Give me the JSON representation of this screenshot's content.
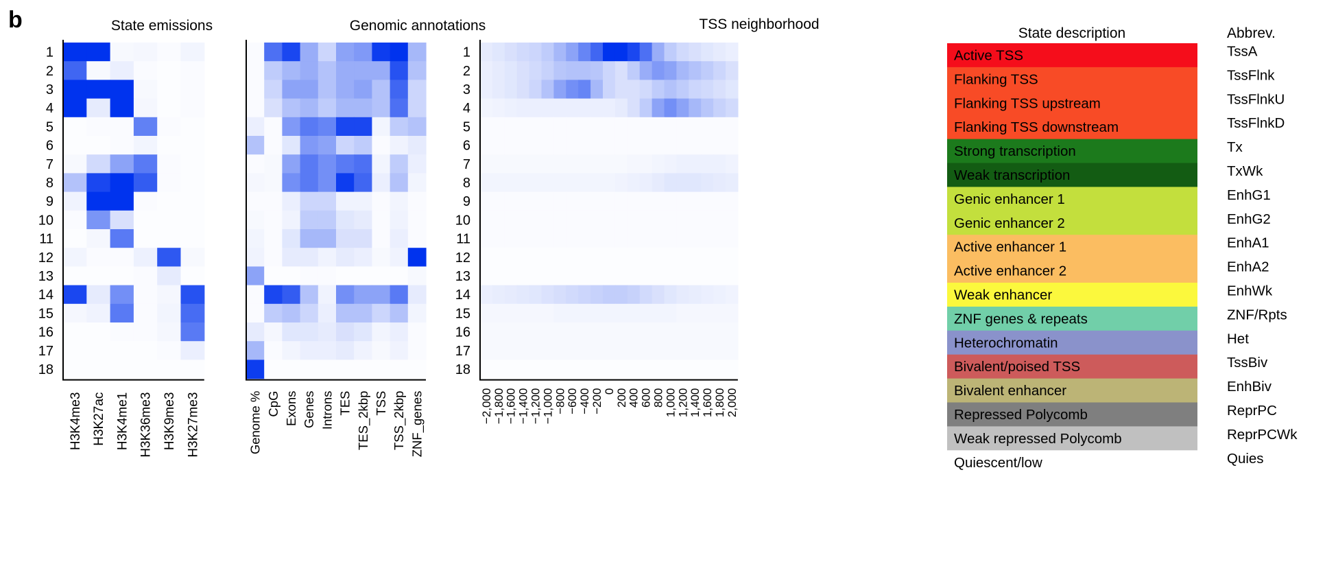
{
  "panel_label": "b",
  "chart_data": [
    {
      "type": "heatmap",
      "title": "State emissions",
      "rows": [
        "1",
        "2",
        "3",
        "4",
        "5",
        "6",
        "7",
        "8",
        "9",
        "10",
        "11",
        "12",
        "13",
        "14",
        "15",
        "16",
        "17",
        "18"
      ],
      "columns": [
        "H3K4me3",
        "H3K27ac",
        "H3K4me1",
        "H3K36me3",
        "H3K9me3",
        "H3K27me3"
      ],
      "value_range": [
        0,
        1
      ],
      "color_low": "#ffffff",
      "color_high": "#0033ee",
      "values": [
        [
          1.0,
          1.0,
          0.03,
          0.04,
          0.02,
          0.05
        ],
        [
          0.75,
          0.03,
          0.08,
          0.02,
          0.01,
          0.02
        ],
        [
          1.0,
          1.0,
          1.0,
          0.03,
          0.01,
          0.02
        ],
        [
          1.0,
          0.1,
          1.0,
          0.04,
          0.01,
          0.02
        ],
        [
          0.01,
          0.02,
          0.02,
          0.62,
          0.02,
          0.01
        ],
        [
          0.01,
          0.01,
          0.02,
          0.05,
          0.01,
          0.01
        ],
        [
          0.03,
          0.18,
          0.45,
          0.65,
          0.02,
          0.01
        ],
        [
          0.3,
          0.9,
          1.0,
          0.8,
          0.02,
          0.01
        ],
        [
          0.06,
          1.0,
          1.0,
          0.02,
          0.01,
          0.01
        ],
        [
          0.02,
          0.52,
          0.15,
          0.01,
          0.01,
          0.01
        ],
        [
          0.01,
          0.04,
          0.65,
          0.01,
          0.01,
          0.01
        ],
        [
          0.05,
          0.02,
          0.02,
          0.07,
          0.82,
          0.03
        ],
        [
          0.01,
          0.01,
          0.01,
          0.02,
          0.1,
          0.01
        ],
        [
          0.9,
          0.1,
          0.55,
          0.02,
          0.04,
          0.85
        ],
        [
          0.04,
          0.06,
          0.65,
          0.02,
          0.05,
          0.72
        ],
        [
          0.01,
          0.01,
          0.02,
          0.02,
          0.04,
          0.65
        ],
        [
          0.01,
          0.01,
          0.01,
          0.01,
          0.02,
          0.08
        ],
        [
          0.01,
          0.01,
          0.01,
          0.01,
          0.01,
          0.01
        ]
      ]
    },
    {
      "type": "heatmap",
      "title": "Genomic annotations",
      "rows": [
        "1",
        "2",
        "3",
        "4",
        "5",
        "6",
        "7",
        "8",
        "9",
        "10",
        "11",
        "12",
        "13",
        "14",
        "15",
        "16",
        "17",
        "18"
      ],
      "columns": [
        "Genome %",
        "CpG",
        "Exons",
        "Genes",
        "Introns",
        "TES",
        "TES_2kbp",
        "TSS",
        "TSS_2kbp",
        "ZNF_genes"
      ],
      "value_range": [
        0,
        1
      ],
      "color_low": "#ffffff",
      "color_high": "#0033ee",
      "values": [
        [
          0.02,
          0.7,
          0.9,
          0.4,
          0.2,
          0.45,
          0.5,
          0.95,
          1.0,
          0.35
        ],
        [
          0.02,
          0.25,
          0.35,
          0.4,
          0.3,
          0.4,
          0.4,
          0.4,
          0.85,
          0.3
        ],
        [
          0.02,
          0.2,
          0.45,
          0.45,
          0.3,
          0.4,
          0.45,
          0.3,
          0.75,
          0.2
        ],
        [
          0.02,
          0.15,
          0.3,
          0.35,
          0.25,
          0.35,
          0.35,
          0.3,
          0.7,
          0.2
        ],
        [
          0.08,
          0.02,
          0.5,
          0.65,
          0.6,
          0.9,
          0.9,
          0.05,
          0.25,
          0.3
        ],
        [
          0.3,
          0.02,
          0.12,
          0.5,
          0.45,
          0.2,
          0.25,
          0.02,
          0.06,
          0.1
        ],
        [
          0.02,
          0.03,
          0.45,
          0.65,
          0.55,
          0.65,
          0.7,
          0.05,
          0.25,
          0.08
        ],
        [
          0.04,
          0.03,
          0.55,
          0.65,
          0.55,
          0.95,
          0.75,
          0.08,
          0.3,
          0.05
        ],
        [
          0.02,
          0.02,
          0.08,
          0.2,
          0.2,
          0.06,
          0.06,
          0.02,
          0.05,
          0.02
        ],
        [
          0.03,
          0.02,
          0.06,
          0.25,
          0.25,
          0.12,
          0.1,
          0.02,
          0.06,
          0.02
        ],
        [
          0.05,
          0.02,
          0.12,
          0.35,
          0.35,
          0.15,
          0.15,
          0.02,
          0.08,
          0.02
        ],
        [
          0.06,
          0.02,
          0.1,
          0.1,
          0.06,
          0.1,
          0.08,
          0.03,
          0.06,
          1.0
        ],
        [
          0.45,
          0.01,
          0.01,
          0.02,
          0.02,
          0.01,
          0.01,
          0.01,
          0.01,
          0.03
        ],
        [
          0.02,
          0.9,
          0.8,
          0.3,
          0.06,
          0.55,
          0.45,
          0.45,
          0.65,
          0.1
        ],
        [
          0.02,
          0.25,
          0.3,
          0.2,
          0.08,
          0.3,
          0.3,
          0.2,
          0.3,
          0.05
        ],
        [
          0.1,
          0.04,
          0.12,
          0.12,
          0.1,
          0.15,
          0.12,
          0.05,
          0.08,
          0.02
        ],
        [
          0.35,
          0.02,
          0.05,
          0.08,
          0.08,
          0.1,
          0.06,
          0.03,
          0.06,
          0.02
        ],
        [
          0.95,
          0.01,
          0.01,
          0.01,
          0.01,
          0.01,
          0.01,
          0.01,
          0.01,
          0.01
        ]
      ]
    },
    {
      "type": "heatmap",
      "title": "TSS neighborhood",
      "rows": [
        "1",
        "2",
        "3",
        "4",
        "5",
        "6",
        "7",
        "8",
        "9",
        "10",
        "11",
        "12",
        "13",
        "14",
        "15",
        "16",
        "17",
        "18"
      ],
      "columns": [
        "−2,000",
        "−1,800",
        "−1,600",
        "−1,400",
        "−1,200",
        "−1,000",
        "−800",
        "−600",
        "−400",
        "−200",
        "0",
        "200",
        "400",
        "600",
        "800",
        "1,000",
        "1,200",
        "1,400",
        "1,600",
        "1,800",
        "2,000"
      ],
      "value_range": [
        0,
        1
      ],
      "color_low": "#ffffff",
      "color_high": "#0033ee",
      "values": [
        [
          0.1,
          0.12,
          0.15,
          0.18,
          0.2,
          0.25,
          0.35,
          0.45,
          0.6,
          0.75,
          1.0,
          1.0,
          0.9,
          0.7,
          0.4,
          0.25,
          0.18,
          0.15,
          0.12,
          0.1,
          0.08
        ],
        [
          0.08,
          0.1,
          0.12,
          0.15,
          0.18,
          0.22,
          0.28,
          0.3,
          0.3,
          0.28,
          0.2,
          0.15,
          0.25,
          0.4,
          0.5,
          0.45,
          0.35,
          0.3,
          0.25,
          0.2,
          0.15
        ],
        [
          0.08,
          0.1,
          0.12,
          0.15,
          0.2,
          0.3,
          0.45,
          0.55,
          0.6,
          0.35,
          0.2,
          0.15,
          0.15,
          0.18,
          0.25,
          0.3,
          0.25,
          0.2,
          0.18,
          0.15,
          0.12
        ],
        [
          0.05,
          0.06,
          0.07,
          0.08,
          0.08,
          0.08,
          0.08,
          0.08,
          0.08,
          0.08,
          0.08,
          0.1,
          0.15,
          0.25,
          0.45,
          0.55,
          0.45,
          0.35,
          0.28,
          0.22,
          0.18
        ],
        [
          0.02,
          0.02,
          0.02,
          0.02,
          0.02,
          0.02,
          0.02,
          0.02,
          0.02,
          0.02,
          0.02,
          0.02,
          0.02,
          0.02,
          0.02,
          0.02,
          0.02,
          0.02,
          0.02,
          0.02,
          0.02
        ],
        [
          0.02,
          0.02,
          0.02,
          0.02,
          0.02,
          0.02,
          0.02,
          0.02,
          0.02,
          0.02,
          0.02,
          0.02,
          0.02,
          0.02,
          0.02,
          0.02,
          0.02,
          0.02,
          0.02,
          0.02,
          0.02
        ],
        [
          0.03,
          0.03,
          0.03,
          0.03,
          0.03,
          0.03,
          0.03,
          0.03,
          0.03,
          0.03,
          0.03,
          0.03,
          0.04,
          0.04,
          0.05,
          0.06,
          0.07,
          0.07,
          0.07,
          0.07,
          0.06
        ],
        [
          0.05,
          0.05,
          0.05,
          0.05,
          0.05,
          0.05,
          0.05,
          0.05,
          0.05,
          0.05,
          0.05,
          0.06,
          0.07,
          0.08,
          0.1,
          0.12,
          0.12,
          0.12,
          0.11,
          0.1,
          0.09
        ],
        [
          0.02,
          0.02,
          0.02,
          0.02,
          0.02,
          0.02,
          0.02,
          0.02,
          0.02,
          0.02,
          0.02,
          0.02,
          0.02,
          0.02,
          0.02,
          0.02,
          0.02,
          0.02,
          0.02,
          0.02,
          0.02
        ],
        [
          0.02,
          0.02,
          0.02,
          0.02,
          0.02,
          0.02,
          0.02,
          0.02,
          0.02,
          0.02,
          0.02,
          0.02,
          0.02,
          0.02,
          0.02,
          0.02,
          0.02,
          0.02,
          0.02,
          0.02,
          0.02
        ],
        [
          0.02,
          0.02,
          0.02,
          0.02,
          0.02,
          0.02,
          0.02,
          0.02,
          0.02,
          0.02,
          0.02,
          0.02,
          0.02,
          0.02,
          0.02,
          0.02,
          0.02,
          0.02,
          0.02,
          0.02,
          0.02
        ],
        [
          0.01,
          0.01,
          0.01,
          0.01,
          0.01,
          0.01,
          0.01,
          0.01,
          0.01,
          0.01,
          0.01,
          0.01,
          0.01,
          0.01,
          0.01,
          0.01,
          0.01,
          0.01,
          0.01,
          0.01,
          0.01
        ],
        [
          0.01,
          0.01,
          0.01,
          0.01,
          0.01,
          0.01,
          0.01,
          0.01,
          0.01,
          0.01,
          0.01,
          0.01,
          0.01,
          0.01,
          0.01,
          0.01,
          0.01,
          0.01,
          0.01,
          0.01,
          0.01
        ],
        [
          0.08,
          0.09,
          0.1,
          0.11,
          0.12,
          0.14,
          0.16,
          0.18,
          0.2,
          0.22,
          0.24,
          0.24,
          0.22,
          0.18,
          0.15,
          0.12,
          0.1,
          0.09,
          0.08,
          0.07,
          0.06
        ],
        [
          0.04,
          0.04,
          0.04,
          0.04,
          0.04,
          0.04,
          0.05,
          0.05,
          0.05,
          0.05,
          0.05,
          0.05,
          0.05,
          0.05,
          0.05,
          0.05,
          0.04,
          0.04,
          0.04,
          0.04,
          0.04
        ],
        [
          0.03,
          0.03,
          0.03,
          0.03,
          0.03,
          0.03,
          0.03,
          0.03,
          0.03,
          0.03,
          0.03,
          0.03,
          0.03,
          0.03,
          0.03,
          0.03,
          0.03,
          0.03,
          0.03,
          0.03,
          0.03
        ],
        [
          0.03,
          0.03,
          0.03,
          0.03,
          0.03,
          0.03,
          0.03,
          0.03,
          0.03,
          0.03,
          0.03,
          0.03,
          0.03,
          0.03,
          0.03,
          0.03,
          0.03,
          0.03,
          0.03,
          0.03,
          0.03
        ],
        [
          0.01,
          0.01,
          0.01,
          0.01,
          0.01,
          0.01,
          0.01,
          0.01,
          0.01,
          0.01,
          0.01,
          0.01,
          0.01,
          0.01,
          0.01,
          0.01,
          0.01,
          0.01,
          0.01,
          0.01,
          0.01
        ]
      ]
    },
    {
      "type": "table",
      "columns": [
        "State description",
        "Abbrev."
      ],
      "states": [
        {
          "description": "Active TSS",
          "abbrev": "TssA",
          "color": "#f50d1b"
        },
        {
          "description": "Flanking TSS",
          "abbrev": "TssFlnk",
          "color": "#f84b26"
        },
        {
          "description": "Flanking TSS upstream",
          "abbrev": "TssFlnkU",
          "color": "#f84b26"
        },
        {
          "description": "Flanking TSS downstream",
          "abbrev": "TssFlnkD",
          "color": "#f84b26"
        },
        {
          "description": "Strong transcription",
          "abbrev": "Tx",
          "color": "#1c7a1c"
        },
        {
          "description": "Weak transcription",
          "abbrev": "TxWk",
          "color": "#135c13"
        },
        {
          "description": "Genic enhancer 1",
          "abbrev": "EnhG1",
          "color": "#c3df3d"
        },
        {
          "description": "Genic enhancer 2",
          "abbrev": "EnhG2",
          "color": "#c3df3d"
        },
        {
          "description": "Active enhancer 1",
          "abbrev": "EnhA1",
          "color": "#fbbd61"
        },
        {
          "description": "Active enhancer 2",
          "abbrev": "EnhA2",
          "color": "#fbbd61"
        },
        {
          "description": "Weak enhancer",
          "abbrev": "EnhWk",
          "color": "#fbf83d"
        },
        {
          "description": "ZNF genes & repeats",
          "abbrev": "ZNF/Rpts",
          "color": "#71cfa9"
        },
        {
          "description": "Heterochromatin",
          "abbrev": "Het",
          "color": "#8a92cb"
        },
        {
          "description": "Bivalent/poised TSS",
          "abbrev": "TssBiv",
          "color": "#cd5b5b"
        },
        {
          "description": "Bivalent enhancer",
          "abbrev": "EnhBiv",
          "color": "#bcb476"
        },
        {
          "description": "Repressed Polycomb",
          "abbrev": "ReprPC",
          "color": "#7f7f7f"
        },
        {
          "description": "Weak repressed Polycomb",
          "abbrev": "ReprPCWk",
          "color": "#c0c0c0"
        },
        {
          "description": "Quiescent/low",
          "abbrev": "Quies",
          "color": "#ffffff"
        }
      ]
    }
  ]
}
